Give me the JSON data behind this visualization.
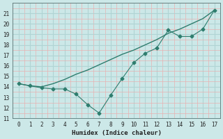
{
  "smooth_x": [
    0,
    1,
    2,
    3,
    4,
    5,
    6,
    7,
    8,
    9,
    10,
    11,
    12,
    13,
    14,
    15,
    16,
    17
  ],
  "smooth_y": [
    14.3,
    14.1,
    14.0,
    14.3,
    14.7,
    15.2,
    15.6,
    16.1,
    16.6,
    17.1,
    17.5,
    18.0,
    18.5,
    19.1,
    19.5,
    20.0,
    20.5,
    21.3
  ],
  "marker_x": [
    0,
    1,
    2,
    3,
    4,
    5,
    6,
    7,
    8,
    9,
    10,
    11,
    12,
    13,
    14,
    15,
    16,
    17
  ],
  "marker_y": [
    14.3,
    14.1,
    13.9,
    13.8,
    13.8,
    13.3,
    12.3,
    11.5,
    13.2,
    14.8,
    16.3,
    17.2,
    17.7,
    19.4,
    18.8,
    18.8,
    19.5,
    21.3
  ],
  "line_color": "#2e7d6e",
  "bg_color": "#cce8e8",
  "major_grid_color": "#b0d4d4",
  "minor_grid_color": "#e8b0b0",
  "xlabel": "Humidex (Indice chaleur)",
  "ylim": [
    11,
    22
  ],
  "xlim": [
    -0.5,
    17.5
  ],
  "yticks": [
    11,
    12,
    13,
    14,
    15,
    16,
    17,
    18,
    19,
    20,
    21
  ],
  "xticks": [
    0,
    1,
    2,
    3,
    4,
    5,
    6,
    7,
    8,
    9,
    10,
    11,
    12,
    13,
    14,
    15,
    16,
    17
  ],
  "label_fontsize": 6.5,
  "tick_fontsize": 5.5
}
